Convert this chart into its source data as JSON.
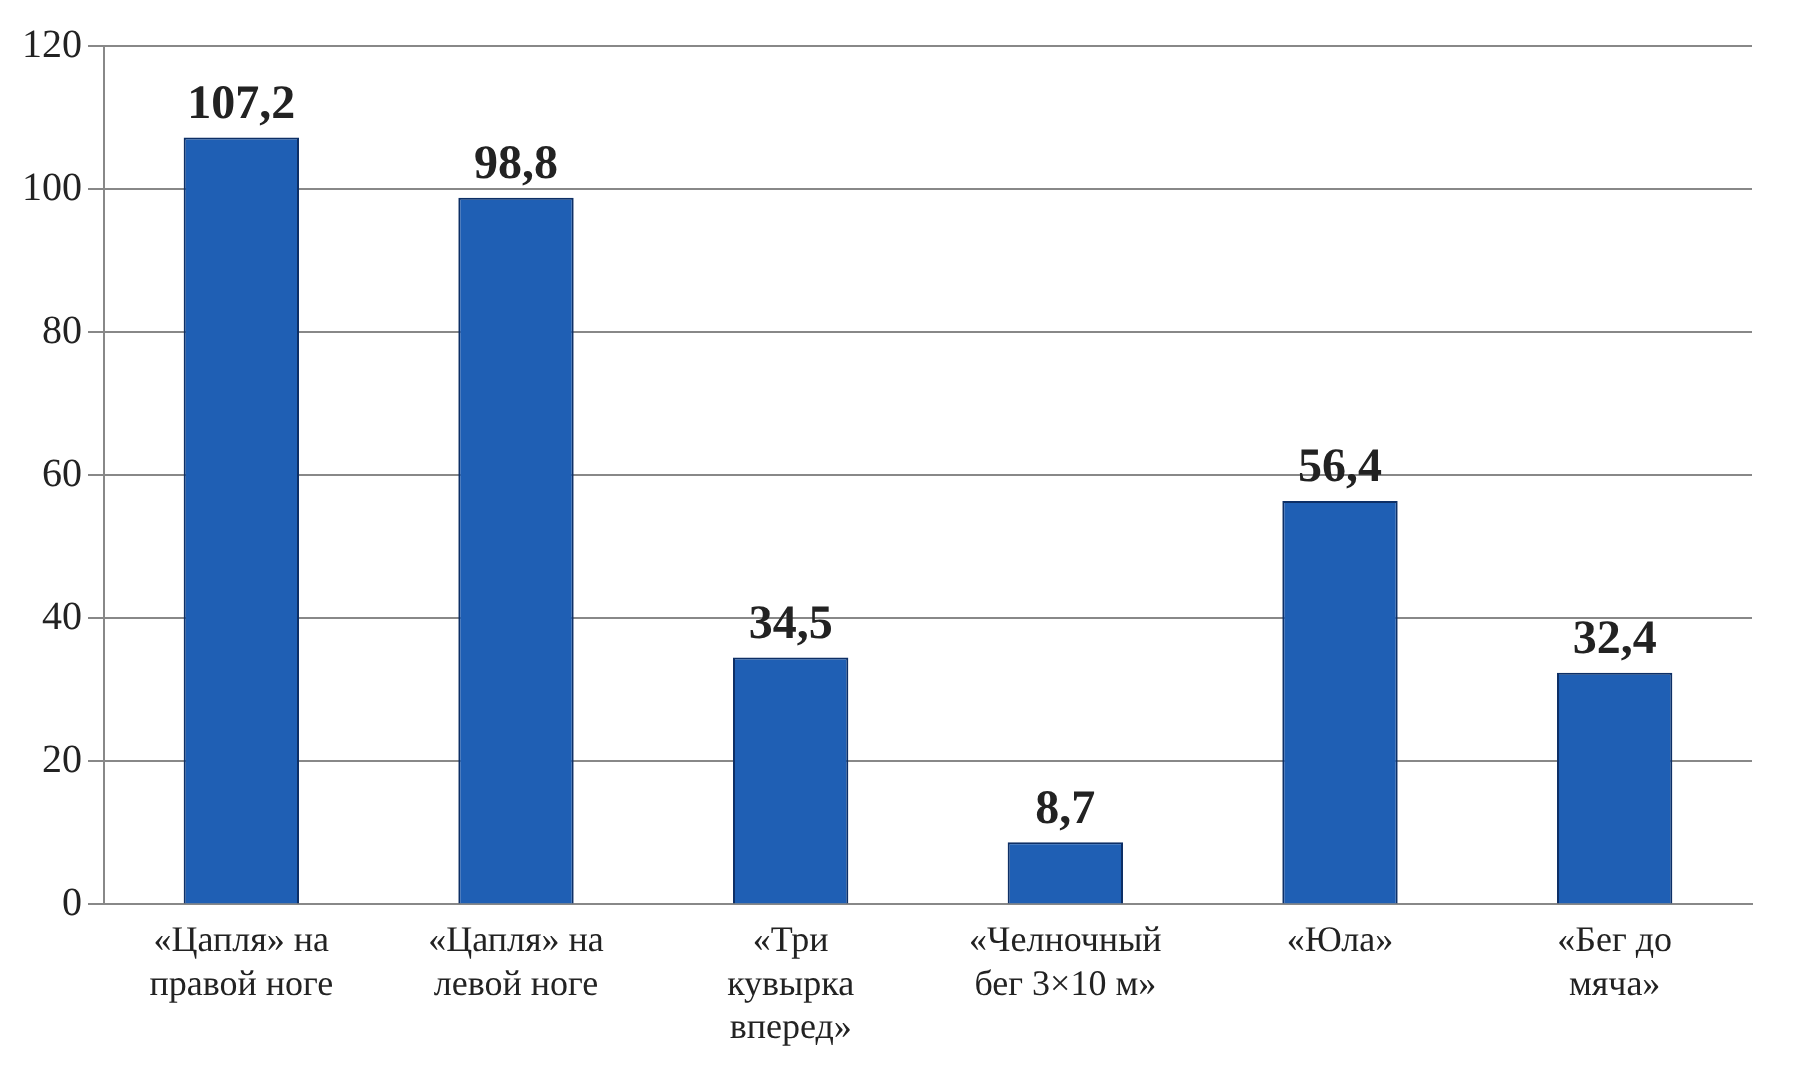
{
  "chart_data": {
    "type": "bar",
    "categories": [
      "«Цапля» на правой ноге",
      "«Цапля» на левой ноге",
      "«Три кувырка вперед»",
      "«Челночный бег 3×10 м»",
      "«Юла»",
      "«Бег до мяча»"
    ],
    "values": [
      107.2,
      98.8,
      34.5,
      8.7,
      56.4,
      32.4
    ],
    "color": "#1f5fb4",
    "value_labels": [
      "107,2",
      "98,8",
      "34,5",
      "8,7",
      "56,4",
      "32,4"
    ],
    "ylim": [
      0,
      120
    ],
    "yticks": [
      0,
      20,
      40,
      60,
      80,
      100,
      120
    ],
    "grid": "y"
  }
}
